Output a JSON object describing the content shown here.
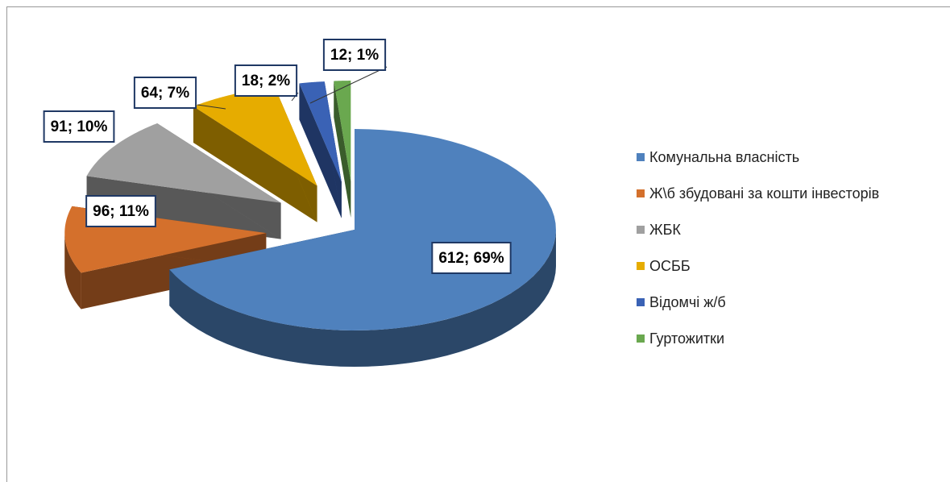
{
  "chart_data": {
    "type": "pie",
    "categories": [
      "Комунальна власність",
      "Ж\\б збудовані за кошти інвесторів",
      "ЖБК",
      "ОСББ",
      "Відомчі ж/б",
      "Гуртожитки"
    ],
    "values": [
      612,
      96,
      91,
      64,
      18,
      12
    ],
    "value_labels": [
      "612; 69%",
      "96; 11%",
      "91; 10%",
      "64; 7%",
      "18; 2%",
      "12; 1%"
    ],
    "colors": [
      "#4f81bd",
      "#d4702c",
      "#a0a0a0",
      "#e6ac00",
      "#3a62b5",
      "#6aa84f"
    ],
    "legend": "right"
  }
}
